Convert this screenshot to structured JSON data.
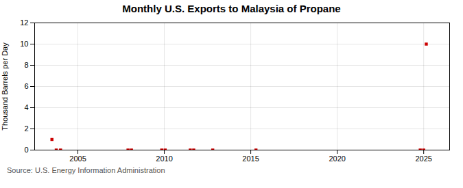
{
  "chart_data": {
    "type": "scatter",
    "title": "Monthly U.S. Exports to Malaysia of Propane",
    "ylabel": "Thousand Barrels per Day",
    "annotation": "Source: U.S. Energy Information Administration",
    "x": [
      2003.5,
      2003.75,
      2004.0,
      2007.9,
      2008.1,
      2009.85,
      2010.05,
      2011.5,
      2011.7,
      2012.8,
      2015.3,
      2024.8,
      2025.0,
      2025.15
    ],
    "values": [
      1.0,
      0.0,
      0.0,
      0.0,
      0.0,
      0.0,
      0.0,
      0.0,
      0.0,
      0.0,
      0.0,
      0.0,
      0.0,
      10.0
    ],
    "color": "#cc0000",
    "marker": "square",
    "xlim": [
      2002.5,
      2026.5
    ],
    "xticks": [
      2005,
      2010,
      2015,
      2020,
      2025
    ],
    "ylim": [
      0,
      12
    ],
    "yticks": [
      0,
      2,
      4,
      6,
      8,
      10,
      12
    ],
    "grid": true
  }
}
